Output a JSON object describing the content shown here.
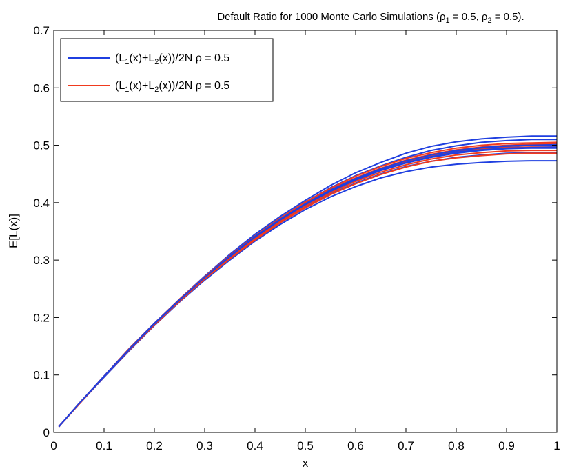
{
  "chart_data": {
    "type": "line",
    "title": "Default Ratio for 1000 Monte Carlo Simulations (ρ",
    "title_parts": {
      "prefix": "Default Ratio for 1000 Monte Carlo Simulations (ρ",
      "sub1": "1",
      "mid": " = 0.5, ρ",
      "sub2": "2",
      "suffix": " = 0.5)."
    },
    "xlabel": "x",
    "ylabel": "E[L(x)]",
    "xlim": [
      0,
      1
    ],
    "ylim": [
      0,
      0.7
    ],
    "xticks": [
      "0",
      "0.1",
      "0.2",
      "0.3",
      "0.4",
      "0.5",
      "0.6",
      "0.7",
      "0.8",
      "0.9",
      "1"
    ],
    "yticks": [
      "0",
      "0.1",
      "0.2",
      "0.3",
      "0.4",
      "0.5",
      "0.6",
      "0.7"
    ],
    "grid": false,
    "legend_position": "top-left",
    "legend": [
      {
        "pre": "(L",
        "s1": "1",
        "mid": "(x)+L",
        "s2": "2",
        "post": "(x))/2N ρ = 0.5",
        "color": "#1f3fe0"
      },
      {
        "pre": "(L",
        "s1": "1",
        "mid": "(x)+L",
        "s2": "2",
        "post": "(x))/2N ρ = 0.5",
        "color": "#f03a1e"
      }
    ],
    "x": [
      0.01,
      0.05,
      0.1,
      0.15,
      0.2,
      0.25,
      0.3,
      0.35,
      0.4,
      0.45,
      0.5,
      0.55,
      0.6,
      0.65,
      0.7,
      0.75,
      0.8,
      0.85,
      0.9,
      0.95,
      1.0
    ],
    "series": [
      {
        "color": "#1f3fe0",
        "values": [
          0.01,
          0.05,
          0.098,
          0.146,
          0.19,
          0.232,
          0.272,
          0.31,
          0.345,
          0.376,
          0.404,
          0.43,
          0.452,
          0.47,
          0.486,
          0.498,
          0.506,
          0.511,
          0.514,
          0.516,
          0.516
        ]
      },
      {
        "color": "#1f3fe0",
        "values": [
          0.01,
          0.049,
          0.096,
          0.142,
          0.186,
          0.227,
          0.265,
          0.3,
          0.333,
          0.362,
          0.388,
          0.41,
          0.428,
          0.443,
          0.454,
          0.462,
          0.467,
          0.47,
          0.472,
          0.473,
          0.473
        ]
      },
      {
        "color": "#1f3fe0",
        "values": [
          0.01,
          0.05,
          0.097,
          0.144,
          0.188,
          0.23,
          0.269,
          0.306,
          0.34,
          0.37,
          0.397,
          0.421,
          0.441,
          0.458,
          0.472,
          0.482,
          0.49,
          0.495,
          0.498,
          0.5,
          0.5
        ]
      },
      {
        "color": "#1f3fe0",
        "values": [
          0.01,
          0.05,
          0.098,
          0.145,
          0.189,
          0.231,
          0.271,
          0.308,
          0.342,
          0.373,
          0.401,
          0.426,
          0.447,
          0.464,
          0.479,
          0.491,
          0.499,
          0.505,
          0.508,
          0.51,
          0.51
        ]
      },
      {
        "color": "#1f3fe0",
        "values": [
          0.01,
          0.049,
          0.097,
          0.143,
          0.187,
          0.229,
          0.267,
          0.303,
          0.336,
          0.366,
          0.392,
          0.415,
          0.434,
          0.45,
          0.463,
          0.472,
          0.479,
          0.483,
          0.486,
          0.487,
          0.487
        ]
      },
      {
        "color": "#1f3fe0",
        "values": [
          0.01,
          0.05,
          0.097,
          0.144,
          0.188,
          0.23,
          0.269,
          0.305,
          0.339,
          0.369,
          0.396,
          0.419,
          0.439,
          0.456,
          0.469,
          0.479,
          0.486,
          0.491,
          0.494,
          0.495,
          0.495
        ]
      },
      {
        "color": "#f03a1e",
        "values": [
          0.01,
          0.05,
          0.098,
          0.145,
          0.19,
          0.231,
          0.27,
          0.307,
          0.341,
          0.372,
          0.399,
          0.423,
          0.443,
          0.46,
          0.474,
          0.484,
          0.492,
          0.497,
          0.5,
          0.502,
          0.502
        ]
      },
      {
        "color": "#f03a1e",
        "values": [
          0.01,
          0.049,
          0.097,
          0.143,
          0.187,
          0.228,
          0.267,
          0.302,
          0.335,
          0.365,
          0.391,
          0.414,
          0.433,
          0.449,
          0.462,
          0.472,
          0.478,
          0.482,
          0.485,
          0.486,
          0.486
        ]
      },
      {
        "color": "#f03a1e",
        "values": [
          0.01,
          0.05,
          0.098,
          0.145,
          0.189,
          0.231,
          0.27,
          0.306,
          0.34,
          0.371,
          0.398,
          0.421,
          0.441,
          0.458,
          0.471,
          0.481,
          0.488,
          0.493,
          0.496,
          0.497,
          0.497
        ]
      },
      {
        "color": "#f03a1e",
        "values": [
          0.01,
          0.05,
          0.098,
          0.146,
          0.19,
          0.232,
          0.271,
          0.308,
          0.342,
          0.373,
          0.401,
          0.425,
          0.446,
          0.463,
          0.477,
          0.487,
          0.495,
          0.5,
          0.503,
          0.504,
          0.505
        ]
      },
      {
        "color": "#f03a1e",
        "values": [
          0.01,
          0.049,
          0.097,
          0.144,
          0.188,
          0.229,
          0.268,
          0.304,
          0.337,
          0.367,
          0.394,
          0.417,
          0.437,
          0.453,
          0.466,
          0.476,
          0.483,
          0.487,
          0.49,
          0.491,
          0.491
        ]
      },
      {
        "color": "#1f3fe0",
        "values": [
          0.01,
          0.05,
          0.097,
          0.144,
          0.189,
          0.23,
          0.27,
          0.306,
          0.34,
          0.37,
          0.397,
          0.42,
          0.44,
          0.457,
          0.47,
          0.48,
          0.488,
          0.492,
          0.495,
          0.496,
          0.497
        ]
      },
      {
        "color": "#1f3fe0",
        "values": [
          0.01,
          0.05,
          0.098,
          0.145,
          0.19,
          0.231,
          0.27,
          0.307,
          0.341,
          0.371,
          0.398,
          0.422,
          0.442,
          0.459,
          0.473,
          0.483,
          0.491,
          0.496,
          0.499,
          0.5,
          0.501
        ]
      }
    ]
  }
}
